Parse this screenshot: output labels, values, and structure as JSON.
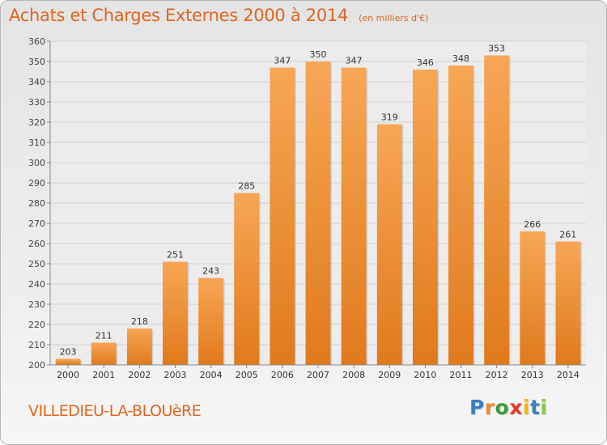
{
  "title": "Achats et Charges Externes 2000 à 2014",
  "subtitle": "(en milliers d'€)",
  "footer_label": "VILLEDIEU-LA-BLOUèRE",
  "brand": {
    "name": "Proxiti",
    "letters": [
      {
        "ch": "P",
        "color": "#3a7fc4"
      },
      {
        "ch": "r",
        "color": "#f08a24"
      },
      {
        "ch": "o",
        "color": "#3a9a3a"
      },
      {
        "ch": "x",
        "color": "#e23a2e"
      },
      {
        "ch": "i",
        "color": "#f5b400"
      },
      {
        "ch": "t",
        "color": "#3a7fc4"
      },
      {
        "ch": "i",
        "color": "#8dc63f"
      }
    ]
  },
  "colors": {
    "bar_light": "#f7a656",
    "bar_dark": "#e07a1c",
    "title": "#e0651e",
    "grid": "#d2d2d2"
  },
  "chart_data": {
    "type": "bar",
    "title": "Achats et Charges Externes 2000 à 2014",
    "subtitle": "(en milliers d'€)",
    "categories": [
      "2000",
      "2001",
      "2002",
      "2003",
      "2004",
      "2005",
      "2006",
      "2007",
      "2008",
      "2009",
      "2010",
      "2011",
      "2012",
      "2013",
      "2014"
    ],
    "values": [
      203,
      211,
      218,
      251,
      243,
      285,
      347,
      350,
      347,
      319,
      346,
      348,
      353,
      266,
      261
    ],
    "ylim": [
      200,
      360
    ],
    "yticks": [
      200,
      210,
      220,
      230,
      240,
      250,
      260,
      270,
      280,
      290,
      300,
      310,
      320,
      330,
      340,
      350,
      360
    ],
    "grid": true,
    "legend": "none",
    "xlabel": "",
    "ylabel": ""
  }
}
